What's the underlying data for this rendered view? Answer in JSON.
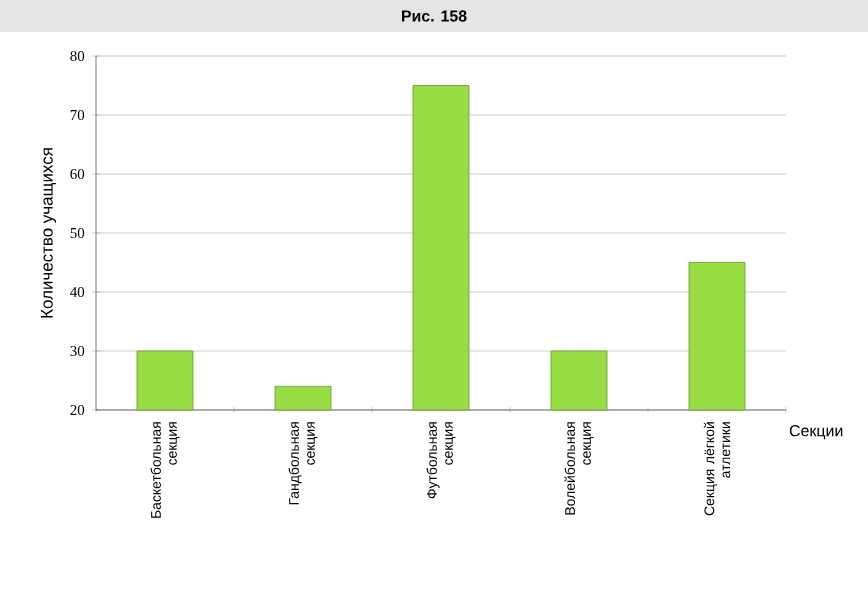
{
  "chart_data": {
    "type": "bar",
    "title": "Рис. 158",
    "xlabel": "Секции",
    "ylabel": "Количество учащихся",
    "categories": [
      "Баскетбольная секция",
      "Гандбольная секция",
      "Футбольная секция",
      "Волейбольная секция",
      "Секция лёгкой атлетики"
    ],
    "values": [
      30,
      24,
      75,
      30,
      45
    ],
    "color": "#99dd44",
    "ylim": [
      20,
      80
    ],
    "yticks": [
      20,
      30,
      40,
      50,
      60,
      70,
      80
    ],
    "grid": "y"
  }
}
